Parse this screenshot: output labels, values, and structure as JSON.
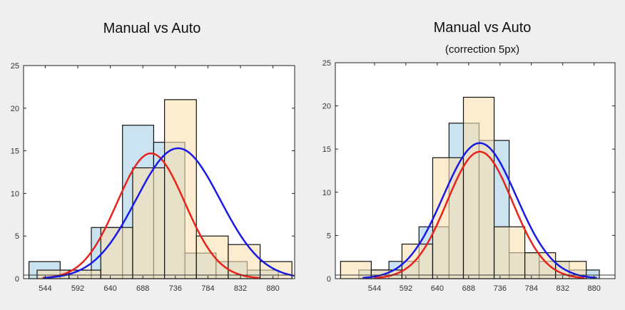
{
  "chart_data": [
    {
      "type": "bar",
      "title": "Manual vs Auto",
      "subtitle": "",
      "xlabel": "",
      "ylabel": "",
      "ylim": [
        0,
        25
      ],
      "yticks": [
        0,
        5,
        10,
        15,
        20,
        25
      ],
      "xticks": [
        544,
        592,
        640,
        688,
        736,
        784,
        832,
        880
      ],
      "xlim": [
        512,
        912
      ],
      "grid": false,
      "series": [
        {
          "color": "#a9cfe8",
          "bins": [
            {
              "x0": 520,
              "x1": 566,
              "value": 2
            },
            {
              "x0": 566,
              "x1": 612,
              "value": 1
            },
            {
              "x0": 612,
              "x1": 658,
              "value": 6
            },
            {
              "x0": 658,
              "x1": 704,
              "value": 18
            },
            {
              "x0": 704,
              "x1": 750,
              "value": 16
            },
            {
              "x0": 750,
              "x1": 796,
              "value": 3
            },
            {
              "x0": 796,
              "x1": 842,
              "value": 2
            },
            {
              "x0": 842,
              "x1": 888,
              "value": 1
            }
          ]
        },
        {
          "color": "#fbe1b0",
          "bins": [
            {
              "x0": 532,
              "x1": 579,
              "value": 1
            },
            {
              "x0": 579,
              "x1": 626,
              "value": 1
            },
            {
              "x0": 626,
              "x1": 673,
              "value": 6
            },
            {
              "x0": 673,
              "x1": 720,
              "value": 13
            },
            {
              "x0": 720,
              "x1": 767,
              "value": 21
            },
            {
              "x0": 767,
              "x1": 814,
              "value": 5
            },
            {
              "x0": 814,
              "x1": 861,
              "value": 4
            },
            {
              "x0": 861,
              "x1": 908,
              "value": 2
            }
          ]
        }
      ],
      "curves": [
        {
          "color": "#e8231b",
          "mean": 700,
          "sd": 50,
          "peak": 14.7
        },
        {
          "color": "#1a1ae6",
          "mean": 740,
          "sd": 62,
          "peak": 15.3
        }
      ]
    },
    {
      "type": "bar",
      "title": "Manual vs Auto",
      "subtitle": "(correction 5px)",
      "xlabel": "",
      "ylabel": "",
      "ylim": [
        0,
        25
      ],
      "yticks": [
        0,
        5,
        10,
        15,
        20,
        25
      ],
      "xticks": [
        544,
        592,
        640,
        688,
        736,
        784,
        832,
        880
      ],
      "xlim": [
        484,
        912
      ],
      "grid": false,
      "series": [
        {
          "color": "#a9cfe8",
          "bins": [
            {
              "x0": 520,
              "x1": 566,
              "value": 1
            },
            {
              "x0": 566,
              "x1": 612,
              "value": 2
            },
            {
              "x0": 612,
              "x1": 658,
              "value": 6
            },
            {
              "x0": 658,
              "x1": 704,
              "value": 18
            },
            {
              "x0": 704,
              "x1": 750,
              "value": 16
            },
            {
              "x0": 750,
              "x1": 796,
              "value": 3
            },
            {
              "x0": 796,
              "x1": 842,
              "value": 2
            },
            {
              "x0": 842,
              "x1": 888,
              "value": 1
            }
          ]
        },
        {
          "color": "#fbe1b0",
          "bins": [
            {
              "x0": 492,
              "x1": 539,
              "value": 2
            },
            {
              "x0": 539,
              "x1": 586,
              "value": 1
            },
            {
              "x0": 586,
              "x1": 633,
              "value": 4
            },
            {
              "x0": 633,
              "x1": 680,
              "value": 14
            },
            {
              "x0": 680,
              "x1": 727,
              "value": 21
            },
            {
              "x0": 727,
              "x1": 774,
              "value": 6
            },
            {
              "x0": 774,
              "x1": 821,
              "value": 3
            },
            {
              "x0": 821,
              "x1": 868,
              "value": 2
            }
          ]
        }
      ],
      "curves": [
        {
          "color": "#e8231b",
          "mean": 705,
          "sd": 50,
          "peak": 14.7
        },
        {
          "color": "#1a1ae6",
          "mean": 705,
          "sd": 56,
          "peak": 15.7
        }
      ]
    }
  ]
}
